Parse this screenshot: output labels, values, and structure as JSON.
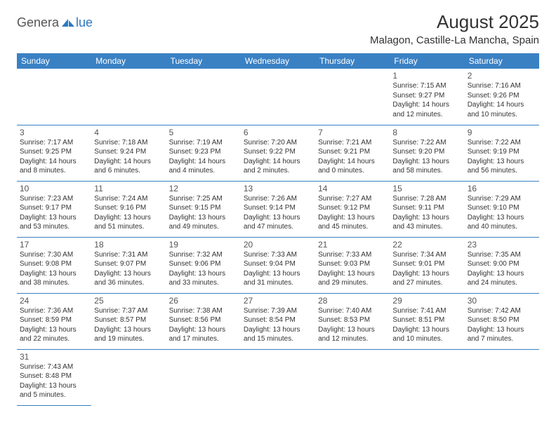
{
  "logo": {
    "text1": "Genera",
    "text2": "lue"
  },
  "title": "August 2025",
  "location": "Malagon, Castille-La Mancha, Spain",
  "accentColor": "#3a81c4",
  "dayNames": [
    "Sunday",
    "Monday",
    "Tuesday",
    "Wednesday",
    "Thursday",
    "Friday",
    "Saturday"
  ],
  "weeks": [
    [
      null,
      null,
      null,
      null,
      null,
      {
        "d": "1",
        "sr": "7:15 AM",
        "ss": "9:27 PM",
        "dl": "14 hours and 12 minutes."
      },
      {
        "d": "2",
        "sr": "7:16 AM",
        "ss": "9:26 PM",
        "dl": "14 hours and 10 minutes."
      }
    ],
    [
      {
        "d": "3",
        "sr": "7:17 AM",
        "ss": "9:25 PM",
        "dl": "14 hours and 8 minutes."
      },
      {
        "d": "4",
        "sr": "7:18 AM",
        "ss": "9:24 PM",
        "dl": "14 hours and 6 minutes."
      },
      {
        "d": "5",
        "sr": "7:19 AM",
        "ss": "9:23 PM",
        "dl": "14 hours and 4 minutes."
      },
      {
        "d": "6",
        "sr": "7:20 AM",
        "ss": "9:22 PM",
        "dl": "14 hours and 2 minutes."
      },
      {
        "d": "7",
        "sr": "7:21 AM",
        "ss": "9:21 PM",
        "dl": "14 hours and 0 minutes."
      },
      {
        "d": "8",
        "sr": "7:22 AM",
        "ss": "9:20 PM",
        "dl": "13 hours and 58 minutes."
      },
      {
        "d": "9",
        "sr": "7:22 AM",
        "ss": "9:19 PM",
        "dl": "13 hours and 56 minutes."
      }
    ],
    [
      {
        "d": "10",
        "sr": "7:23 AM",
        "ss": "9:17 PM",
        "dl": "13 hours and 53 minutes."
      },
      {
        "d": "11",
        "sr": "7:24 AM",
        "ss": "9:16 PM",
        "dl": "13 hours and 51 minutes."
      },
      {
        "d": "12",
        "sr": "7:25 AM",
        "ss": "9:15 PM",
        "dl": "13 hours and 49 minutes."
      },
      {
        "d": "13",
        "sr": "7:26 AM",
        "ss": "9:14 PM",
        "dl": "13 hours and 47 minutes."
      },
      {
        "d": "14",
        "sr": "7:27 AM",
        "ss": "9:12 PM",
        "dl": "13 hours and 45 minutes."
      },
      {
        "d": "15",
        "sr": "7:28 AM",
        "ss": "9:11 PM",
        "dl": "13 hours and 43 minutes."
      },
      {
        "d": "16",
        "sr": "7:29 AM",
        "ss": "9:10 PM",
        "dl": "13 hours and 40 minutes."
      }
    ],
    [
      {
        "d": "17",
        "sr": "7:30 AM",
        "ss": "9:08 PM",
        "dl": "13 hours and 38 minutes."
      },
      {
        "d": "18",
        "sr": "7:31 AM",
        "ss": "9:07 PM",
        "dl": "13 hours and 36 minutes."
      },
      {
        "d": "19",
        "sr": "7:32 AM",
        "ss": "9:06 PM",
        "dl": "13 hours and 33 minutes."
      },
      {
        "d": "20",
        "sr": "7:33 AM",
        "ss": "9:04 PM",
        "dl": "13 hours and 31 minutes."
      },
      {
        "d": "21",
        "sr": "7:33 AM",
        "ss": "9:03 PM",
        "dl": "13 hours and 29 minutes."
      },
      {
        "d": "22",
        "sr": "7:34 AM",
        "ss": "9:01 PM",
        "dl": "13 hours and 27 minutes."
      },
      {
        "d": "23",
        "sr": "7:35 AM",
        "ss": "9:00 PM",
        "dl": "13 hours and 24 minutes."
      }
    ],
    [
      {
        "d": "24",
        "sr": "7:36 AM",
        "ss": "8:59 PM",
        "dl": "13 hours and 22 minutes."
      },
      {
        "d": "25",
        "sr": "7:37 AM",
        "ss": "8:57 PM",
        "dl": "13 hours and 19 minutes."
      },
      {
        "d": "26",
        "sr": "7:38 AM",
        "ss": "8:56 PM",
        "dl": "13 hours and 17 minutes."
      },
      {
        "d": "27",
        "sr": "7:39 AM",
        "ss": "8:54 PM",
        "dl": "13 hours and 15 minutes."
      },
      {
        "d": "28",
        "sr": "7:40 AM",
        "ss": "8:53 PM",
        "dl": "13 hours and 12 minutes."
      },
      {
        "d": "29",
        "sr": "7:41 AM",
        "ss": "8:51 PM",
        "dl": "13 hours and 10 minutes."
      },
      {
        "d": "30",
        "sr": "7:42 AM",
        "ss": "8:50 PM",
        "dl": "13 hours and 7 minutes."
      }
    ],
    [
      {
        "d": "31",
        "sr": "7:43 AM",
        "ss": "8:48 PM",
        "dl": "13 hours and 5 minutes."
      },
      null,
      null,
      null,
      null,
      null,
      null
    ]
  ],
  "labels": {
    "sunrise": "Sunrise:",
    "sunset": "Sunset:",
    "daylight": "Daylight:"
  }
}
